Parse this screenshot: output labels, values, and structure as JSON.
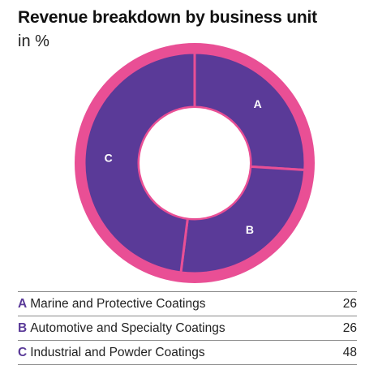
{
  "title": "Revenue breakdown by business unit",
  "subtitle": "in %",
  "colors": {
    "segment": "#5a3a98",
    "ring": "#e94f95",
    "separator": "#e94f95",
    "letter": "#5a3a98"
  },
  "chart_data": {
    "type": "pie",
    "title": "Revenue breakdown by business unit",
    "subtitle": "in %",
    "donut": true,
    "categories": [
      "A",
      "B",
      "C"
    ],
    "labels": [
      "Marine and Protective Coatings",
      "Automotive and Specialty Coatings",
      "Industrial and Powder Coatings"
    ],
    "values": [
      26,
      26,
      48
    ]
  },
  "legend": [
    {
      "letter": "A",
      "label": "Marine and Protective Coatings",
      "value": "26"
    },
    {
      "letter": "B",
      "label": "Automotive and Specialty Coatings",
      "value": "26"
    },
    {
      "letter": "C",
      "label": "Industrial and Powder Coatings",
      "value": "48"
    }
  ]
}
